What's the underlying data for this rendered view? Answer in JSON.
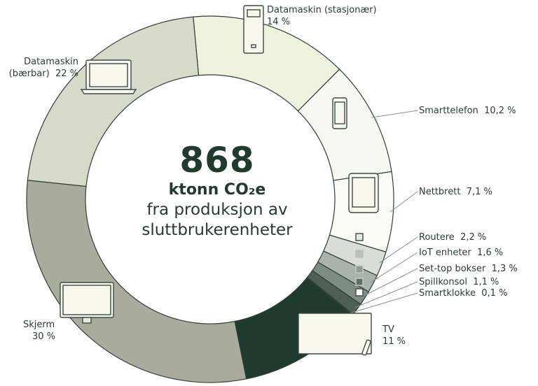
{
  "chart_data": {
    "type": "donut",
    "total_value": "868",
    "total_unit": "ktonn CO₂e",
    "total_caption_1": "fra produksjon av",
    "total_caption_2": "sluttbrukerenheter",
    "slices": [
      {
        "name_1": "Datamaskin (stasjonær)",
        "value_label": "14 %",
        "value": 14,
        "color": "#eef2df",
        "icon": "desktop-tower-icon"
      },
      {
        "name_1": "Smarttelefon",
        "value_label": "10,2 %",
        "value": 10.2,
        "color": "#f7f8f1",
        "icon": "smartphone-icon"
      },
      {
        "name_1": "Nettbrett",
        "value_label": "7,1 %",
        "value": 7.1,
        "color": "#fbfbf6",
        "icon": "tablet-icon"
      },
      {
        "name_1": "Routere",
        "value_label": "2,2 %",
        "value": 2.2,
        "color": "#d9dcd9",
        "icon": "router-icon"
      },
      {
        "name_1": "IoT enheter",
        "value_label": "1,6 %",
        "value": 1.6,
        "color": "#a9b2ab",
        "icon": "iot-icon"
      },
      {
        "name_1": "Set-top bokser",
        "value_label": "1,3 %",
        "value": 1.3,
        "color": "#7d8c84",
        "icon": "set-top-box-icon"
      },
      {
        "name_1": "Spillkonsol",
        "value_label": "1,1 %",
        "value": 1.1,
        "color": "#4d5f57",
        "icon": "game-console-icon"
      },
      {
        "name_1": "Smartklokke",
        "value_label": "0,1 %",
        "value": 0.1,
        "color": "#3a4c44",
        "icon": "smartwatch-icon"
      },
      {
        "name_1": "TV",
        "value_label": "11 %",
        "value": 11,
        "color": "#1f3a2f",
        "icon": "tv-icon"
      },
      {
        "name_1": "Skjerm",
        "value_label": "30 %",
        "value": 30,
        "color": "#a9ab9c",
        "icon": "monitor-icon"
      },
      {
        "name_1": "Datamaskin",
        "name_2": "(bærbar)",
        "value_label": "22 %",
        "value": 22,
        "color": "#d7d9c9",
        "icon": "laptop-icon"
      }
    ]
  }
}
